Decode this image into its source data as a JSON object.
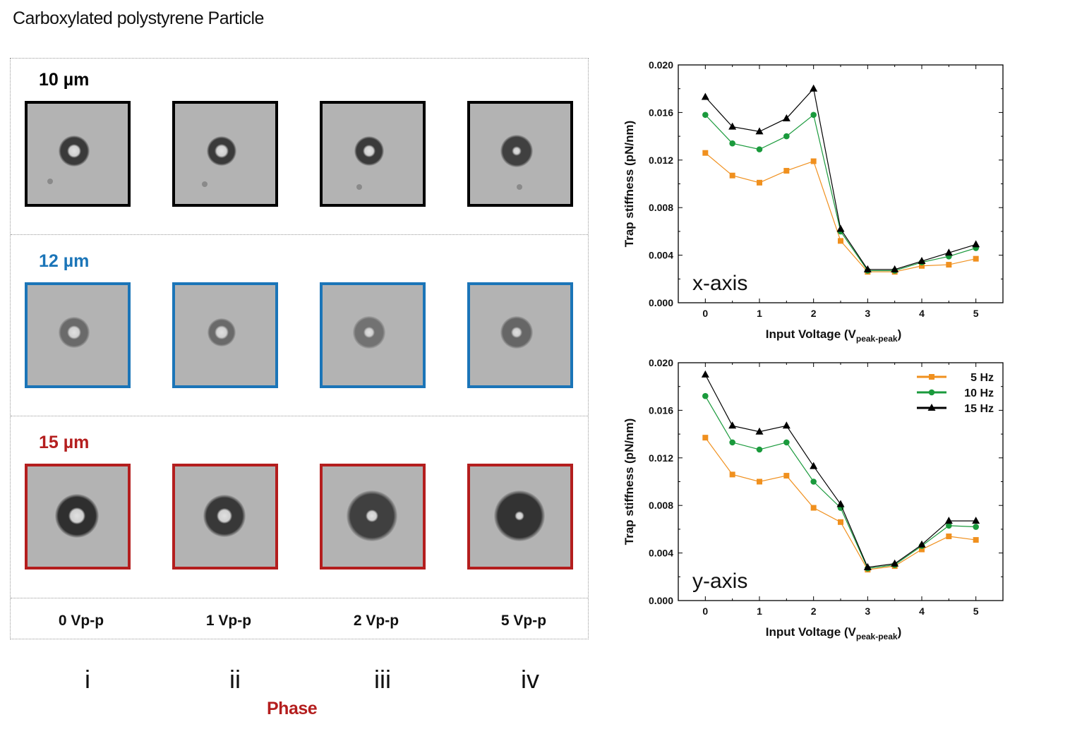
{
  "title": "Carboxylated polystyrene Particle",
  "colors": {
    "row_10um": "#000000",
    "row_12um": "#1b75b8",
    "row_15um": "#b41e1e",
    "phase": "#b41e1e",
    "series_5hz": "#f0901e",
    "series_10hz": "#1a9a3c",
    "series_15hz": "#000000"
  },
  "rows": [
    {
      "label": "10 µm",
      "color": "#000000"
    },
    {
      "label": "12 µm",
      "color": "#1b75b8"
    },
    {
      "label": "15 µm",
      "color": "#b41e1e"
    }
  ],
  "voltages": [
    "0 Vp-p",
    "1 Vp-p",
    "2 Vp-p",
    "5 Vp-p"
  ],
  "numerals": [
    "i",
    "ii",
    "iii",
    "iv"
  ],
  "phase_label": "Phase",
  "chart_data": [
    {
      "type": "line",
      "annotation": "x-axis",
      "xlabel": "Input Voltage (V",
      "xlabel_sub": "peak-peak",
      "xlabel_end": ")",
      "ylabel": "Trap stiffness (pN/nm)",
      "xlim": [
        -0.5,
        5.5
      ],
      "ylim": [
        0.0,
        0.02
      ],
      "xticks": [
        "0",
        "1",
        "2",
        "3",
        "4",
        "5"
      ],
      "yticks": [
        "0.000",
        "0.004",
        "0.008",
        "0.012",
        "0.016",
        "0.020"
      ],
      "grid": false,
      "x": [
        0,
        0.5,
        1,
        1.5,
        2,
        2.5,
        3,
        3.5,
        4,
        4.5,
        5
      ],
      "series": [
        {
          "name": "5 Hz",
          "marker": "square",
          "color": "#f0901e",
          "values": [
            0.0126,
            0.0107,
            0.0101,
            0.0111,
            0.0119,
            0.0052,
            0.0026,
            0.0026,
            0.0031,
            0.0032,
            0.0037
          ]
        },
        {
          "name": "10 Hz",
          "marker": "circle",
          "color": "#1a9a3c",
          "values": [
            0.0158,
            0.0134,
            0.0129,
            0.014,
            0.0158,
            0.006,
            0.0027,
            0.0027,
            0.0034,
            0.0039,
            0.0046
          ]
        },
        {
          "name": "15 Hz",
          "marker": "triangle",
          "color": "#000000",
          "values": [
            0.0173,
            0.0148,
            0.0144,
            0.0155,
            0.018,
            0.0062,
            0.0028,
            0.0028,
            0.0035,
            0.0042,
            0.0049
          ]
        }
      ]
    },
    {
      "type": "line",
      "annotation": "y-axis",
      "xlabel": "Input Voltage (V",
      "xlabel_sub": "peak-peak",
      "xlabel_end": ")",
      "ylabel": "Trap stiffness (pN/nm)",
      "xlim": [
        -0.5,
        5.5
      ],
      "ylim": [
        0.0,
        0.02
      ],
      "xticks": [
        "0",
        "1",
        "2",
        "3",
        "4",
        "5"
      ],
      "yticks": [
        "0.000",
        "0.004",
        "0.008",
        "0.012",
        "0.016",
        "0.020"
      ],
      "grid": false,
      "legend": "top-right",
      "x": [
        0,
        0.5,
        1,
        1.5,
        2,
        2.5,
        3,
        3.5,
        4,
        4.5,
        5
      ],
      "series": [
        {
          "name": "5 Hz",
          "marker": "square",
          "color": "#f0901e",
          "values": [
            0.0137,
            0.0106,
            0.01,
            0.0105,
            0.0078,
            0.0066,
            0.0026,
            0.0029,
            0.0043,
            0.0054,
            0.0051
          ]
        },
        {
          "name": "10 Hz",
          "marker": "circle",
          "color": "#1a9a3c",
          "values": [
            0.0172,
            0.0133,
            0.0127,
            0.0133,
            0.01,
            0.0078,
            0.0027,
            0.003,
            0.0046,
            0.0063,
            0.0062
          ]
        },
        {
          "name": "15 Hz",
          "marker": "triangle",
          "color": "#000000",
          "values": [
            0.019,
            0.0147,
            0.0142,
            0.0147,
            0.0113,
            0.0081,
            0.0028,
            0.0031,
            0.0047,
            0.0067,
            0.0067
          ]
        }
      ]
    }
  ]
}
